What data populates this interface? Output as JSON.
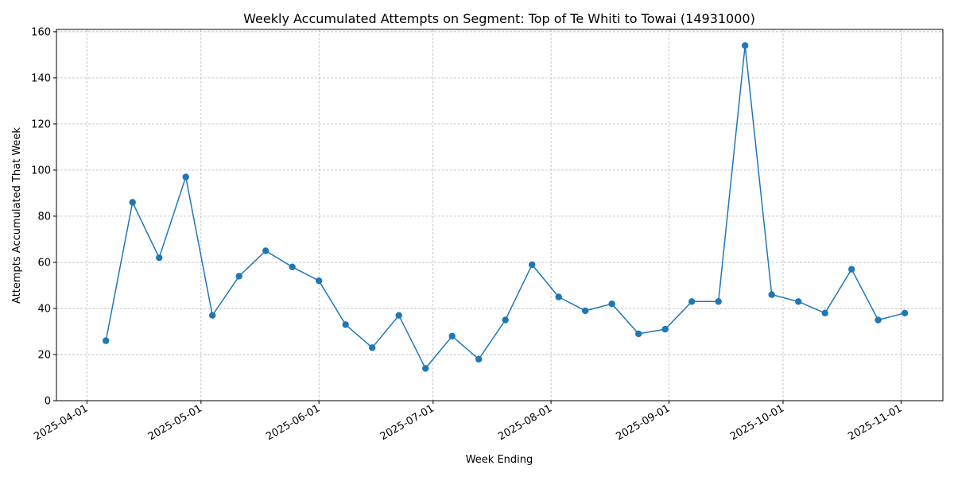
{
  "chart_data": {
    "type": "line",
    "title": "Weekly Accumulated Attempts on Segment: Top of Te Whiti to Towai (14931000)",
    "xlabel": "Week Ending",
    "ylabel": "Attempts Accumulated That Week",
    "x_ticks": [
      "2025-04-01",
      "2025-05-01",
      "2025-06-01",
      "2025-07-01",
      "2025-08-01",
      "2025-09-01",
      "2025-10-01",
      "2025-11-01"
    ],
    "y_ticks": [
      0,
      20,
      40,
      60,
      80,
      100,
      120,
      140,
      160
    ],
    "xlim": [
      "2025-03-24",
      "2025-11-12"
    ],
    "ylim": [
      0,
      161
    ],
    "grid": true,
    "color": "#1f77b4",
    "x": [
      "2025-04-06",
      "2025-04-13",
      "2025-04-20",
      "2025-04-27",
      "2025-05-04",
      "2025-05-11",
      "2025-05-18",
      "2025-05-25",
      "2025-06-01",
      "2025-06-08",
      "2025-06-15",
      "2025-06-22",
      "2025-06-29",
      "2025-07-06",
      "2025-07-13",
      "2025-07-20",
      "2025-07-27",
      "2025-08-03",
      "2025-08-10",
      "2025-08-17",
      "2025-08-24",
      "2025-08-31",
      "2025-09-07",
      "2025-09-14",
      "2025-09-21",
      "2025-09-28",
      "2025-10-05",
      "2025-10-12",
      "2025-10-19",
      "2025-10-26",
      "2025-11-02"
    ],
    "y": [
      26,
      86,
      62,
      97,
      37,
      54,
      65,
      58,
      52,
      33,
      23,
      37,
      14,
      28,
      18,
      35,
      59,
      45,
      39,
      42,
      29,
      31,
      43,
      43,
      154,
      46,
      43,
      38,
      57,
      35,
      38
    ]
  }
}
